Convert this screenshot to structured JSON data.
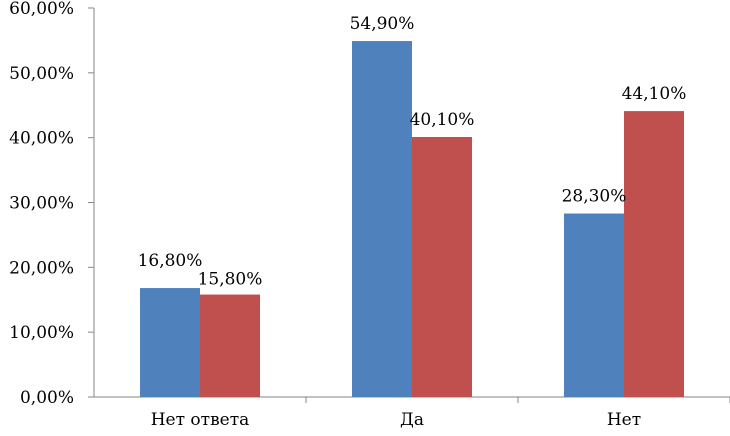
{
  "chart_data": {
    "type": "bar",
    "categories": [
      "Нет ответа",
      "Да",
      "Нет"
    ],
    "series": [
      {
        "values": [
          16.8,
          54.9,
          28.3
        ],
        "labels": [
          "16,80%",
          "54,90%",
          "28,30%"
        ],
        "color": "#4F81BD"
      },
      {
        "values": [
          15.8,
          40.1,
          44.1
        ],
        "labels": [
          "15,80%",
          "40,10%",
          "44,10%"
        ],
        "color": "#C0504D"
      }
    ],
    "yticks": [
      "0,00%",
      "10,00%",
      "20,00%",
      "30,00%",
      "40,00%",
      "50,00%",
      "60,00%"
    ],
    "ylim": [
      0,
      60
    ],
    "grid": false,
    "legend": "none",
    "title": "",
    "xlabel": "",
    "ylabel": ""
  }
}
